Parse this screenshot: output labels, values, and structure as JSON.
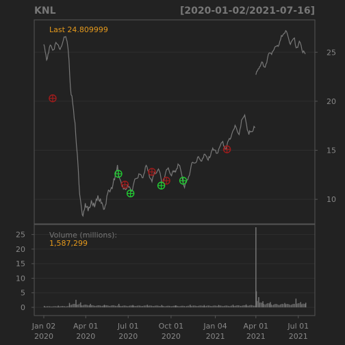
{
  "header": {
    "symbol": "KNL",
    "date_range": "[2020-01-02/2021-07-16]"
  },
  "price_panel": {
    "last_label": "Last 24.809999",
    "y_ticks": [
      10,
      15,
      20,
      25
    ]
  },
  "volume_panel": {
    "label": "Volume (millions):",
    "value_label": "1,587,299",
    "y_ticks": [
      0,
      5,
      10,
      15,
      20,
      25
    ]
  },
  "x_axis": {
    "ticks": [
      {
        "date": "2020-01-02",
        "line1": "Jan 02",
        "line2": "2020"
      },
      {
        "date": "2020-04-01",
        "line1": "Apr 01",
        "line2": "2020"
      },
      {
        "date": "2020-07-01",
        "line1": "Jul 01",
        "line2": "2020"
      },
      {
        "date": "2020-10-01",
        "line1": "Oct 01",
        "line2": "2020"
      },
      {
        "date": "2021-01-04",
        "line1": "Jan 04",
        "line2": "2021"
      },
      {
        "date": "2021-04-01",
        "line1": "Apr 01",
        "line2": "2021"
      },
      {
        "date": "2021-07-01",
        "line1": "Jul 01",
        "line2": "2021"
      }
    ]
  },
  "colors": {
    "background": "#222222",
    "panel_border": "#555555",
    "price_line": "#7a7a7a",
    "accent": "#e69a1c",
    "axis_text": "#888888",
    "header_text": "#777777",
    "buy_marker": "#22cc33",
    "sell_marker": "#a11c1c"
  },
  "chart_data": {
    "type": "line",
    "title": "KNL",
    "date_range": "2020-01-02/2021-07-16",
    "x_range": [
      "2020-01-02",
      "2021-07-16"
    ],
    "price_ylim": [
      7.5,
      28.3
    ],
    "volume_ylim": [
      0,
      27.5
    ],
    "series": [
      {
        "name": "Close",
        "points": [
          [
            "2020-01-02",
            25.8
          ],
          [
            "2020-01-08",
            24.2
          ],
          [
            "2020-01-14",
            25.5
          ],
          [
            "2020-01-21",
            25.2
          ],
          [
            "2020-01-28",
            26.0
          ],
          [
            "2020-02-04",
            25.4
          ],
          [
            "2020-02-11",
            25.9
          ],
          [
            "2020-02-18",
            26.6
          ],
          [
            "2020-02-21",
            26.1
          ],
          [
            "2020-02-25",
            24.2
          ],
          [
            "2020-02-28",
            21.5
          ],
          [
            "2020-03-04",
            19.8
          ],
          [
            "2020-03-09",
            17.8
          ],
          [
            "2020-03-12",
            15.5
          ],
          [
            "2020-03-16",
            13.0
          ],
          [
            "2020-03-19",
            10.5
          ],
          [
            "2020-03-23",
            9.0
          ],
          [
            "2020-03-26",
            8.3
          ],
          [
            "2020-03-31",
            9.6
          ],
          [
            "2020-04-06",
            8.8
          ],
          [
            "2020-04-13",
            9.9
          ],
          [
            "2020-04-20",
            9.2
          ],
          [
            "2020-04-27",
            10.4
          ],
          [
            "2020-05-04",
            9.6
          ],
          [
            "2020-05-11",
            9.0
          ],
          [
            "2020-05-18",
            10.6
          ],
          [
            "2020-05-26",
            11.2
          ],
          [
            "2020-06-02",
            12.0
          ],
          [
            "2020-06-08",
            13.5
          ],
          [
            "2020-06-12",
            12.2
          ],
          [
            "2020-06-19",
            11.4
          ],
          [
            "2020-06-26",
            11.0
          ],
          [
            "2020-07-03",
            11.3
          ],
          [
            "2020-07-10",
            10.9
          ],
          [
            "2020-07-17",
            12.1
          ],
          [
            "2020-07-24",
            12.6
          ],
          [
            "2020-07-31",
            12.2
          ],
          [
            "2020-08-07",
            13.3
          ],
          [
            "2020-08-14",
            12.8
          ],
          [
            "2020-08-21",
            11.8
          ],
          [
            "2020-08-28",
            12.6
          ],
          [
            "2020-09-04",
            13.1
          ],
          [
            "2020-09-11",
            11.7
          ],
          [
            "2020-09-18",
            12.4
          ],
          [
            "2020-09-25",
            13.2
          ],
          [
            "2020-10-02",
            12.4
          ],
          [
            "2020-10-09",
            12.9
          ],
          [
            "2020-10-16",
            13.6
          ],
          [
            "2020-10-23",
            12.7
          ],
          [
            "2020-10-30",
            11.2
          ],
          [
            "2020-11-06",
            12.0
          ],
          [
            "2020-11-13",
            13.4
          ],
          [
            "2020-11-20",
            13.7
          ],
          [
            "2020-11-27",
            14.3
          ],
          [
            "2020-12-04",
            13.9
          ],
          [
            "2020-12-11",
            14.6
          ],
          [
            "2020-12-18",
            14.1
          ],
          [
            "2020-12-28",
            15.0
          ],
          [
            "2021-01-06",
            14.7
          ],
          [
            "2021-01-13",
            15.3
          ],
          [
            "2021-01-20",
            15.9
          ],
          [
            "2021-01-27",
            15.1
          ],
          [
            "2021-02-03",
            16.2
          ],
          [
            "2021-02-10",
            16.9
          ],
          [
            "2021-02-17",
            17.4
          ],
          [
            "2021-02-24",
            16.6
          ],
          [
            "2021-03-03",
            18.2
          ],
          [
            "2021-03-08",
            18.6
          ],
          [
            "2021-03-12",
            17.6
          ],
          [
            "2021-03-17",
            16.6
          ],
          [
            "2021-03-22",
            16.9
          ],
          [
            "2021-03-26",
            17.0
          ],
          [
            "2021-03-30",
            17.3
          ],
          [
            "2021-04-01",
            22.7
          ],
          [
            "2021-04-06",
            23.3
          ],
          [
            "2021-04-12",
            23.8
          ],
          [
            "2021-04-19",
            23.5
          ],
          [
            "2021-04-26",
            24.4
          ],
          [
            "2021-05-03",
            24.9
          ],
          [
            "2021-05-10",
            25.3
          ],
          [
            "2021-05-17",
            25.7
          ],
          [
            "2021-05-24",
            26.3
          ],
          [
            "2021-05-31",
            26.9
          ],
          [
            "2021-06-04",
            27.2
          ],
          [
            "2021-06-09",
            26.6
          ],
          [
            "2021-06-14",
            25.8
          ],
          [
            "2021-06-21",
            26.4
          ],
          [
            "2021-06-28",
            25.5
          ],
          [
            "2021-07-05",
            26.0
          ],
          [
            "2021-07-09",
            25.2
          ],
          [
            "2021-07-16",
            24.81
          ]
        ]
      }
    ],
    "buy_signals": [
      [
        "2020-06-10",
        12.6
      ],
      [
        "2020-07-06",
        10.6
      ],
      [
        "2020-09-10",
        11.4
      ],
      [
        "2020-10-27",
        11.9
      ]
    ],
    "sell_signals": [
      [
        "2020-01-21",
        20.3
      ],
      [
        "2020-06-24",
        11.5
      ],
      [
        "2020-08-21",
        12.8
      ],
      [
        "2020-09-21",
        11.9
      ],
      [
        "2021-01-29",
        15.1
      ]
    ],
    "volume": {
      "name": "Volume (millions)",
      "points": [
        [
          "2020-01-02",
          0.5
        ],
        [
          "2020-02-01",
          0.6
        ],
        [
          "2020-02-25",
          1.5
        ],
        [
          "2020-03-10",
          2.6
        ],
        [
          "2020-03-20",
          1.7
        ],
        [
          "2020-04-10",
          1.2
        ],
        [
          "2020-05-10",
          0.9
        ],
        [
          "2020-06-10",
          1.2
        ],
        [
          "2020-07-10",
          0.8
        ],
        [
          "2020-08-10",
          0.9
        ],
        [
          "2020-09-10",
          0.8
        ],
        [
          "2020-10-10",
          0.7
        ],
        [
          "2020-11-10",
          0.9
        ],
        [
          "2020-12-10",
          0.8
        ],
        [
          "2021-01-10",
          0.8
        ],
        [
          "2021-02-10",
          0.9
        ],
        [
          "2021-03-10",
          1.0
        ],
        [
          "2021-03-31",
          27.5
        ],
        [
          "2021-04-01",
          5.5
        ],
        [
          "2021-04-06",
          3.5
        ],
        [
          "2021-04-15",
          2.1
        ],
        [
          "2021-05-01",
          1.8
        ],
        [
          "2021-06-01",
          1.5
        ],
        [
          "2021-06-25",
          3.0
        ],
        [
          "2021-07-05",
          1.8
        ],
        [
          "2021-07-16",
          1.59
        ]
      ]
    },
    "grid": true,
    "legend": "none"
  }
}
